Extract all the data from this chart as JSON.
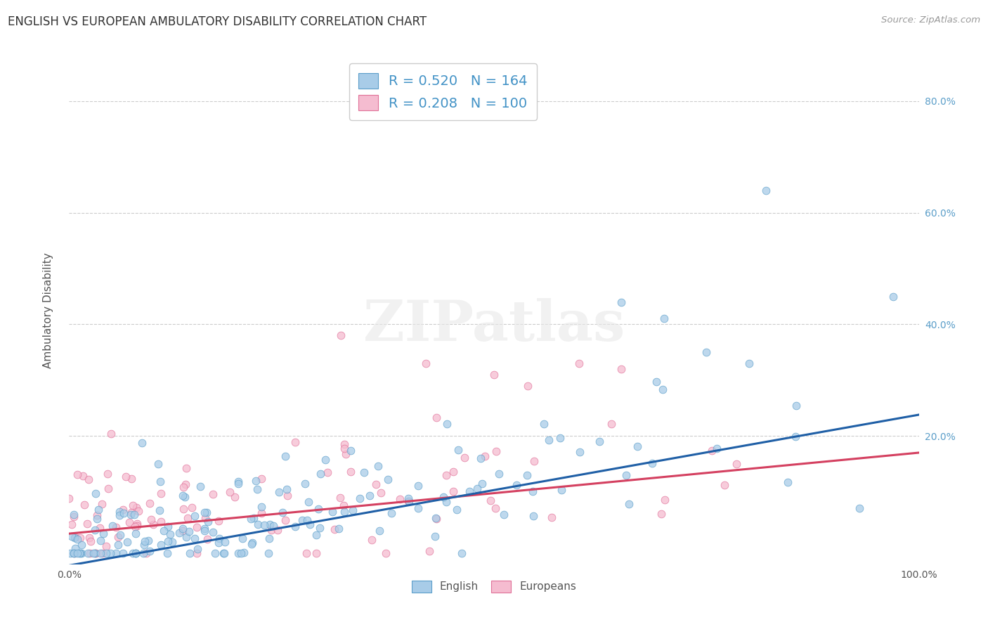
{
  "title": "ENGLISH VS EUROPEAN AMBULATORY DISABILITY CORRELATION CHART",
  "source": "Source: ZipAtlas.com",
  "ylabel": "Ambulatory Disability",
  "xlim": [
    0.0,
    1.0
  ],
  "ylim": [
    -0.03,
    0.88
  ],
  "xtick_labels": [
    "0.0%",
    "",
    "",
    "",
    "",
    "100.0%"
  ],
  "xtick_vals": [
    0.0,
    0.2,
    0.4,
    0.6,
    0.8,
    1.0
  ],
  "right_ytick_labels": [
    "20.0%",
    "40.0%",
    "60.0%",
    "80.0%"
  ],
  "right_ytick_vals": [
    0.2,
    0.4,
    0.6,
    0.8
  ],
  "english_color": "#a8cce8",
  "english_edge_color": "#5b9ec9",
  "european_color": "#f5bcd0",
  "european_edge_color": "#e07098",
  "english_R": 0.52,
  "english_N": 164,
  "european_R": 0.208,
  "european_N": 100,
  "legend_label_english": "English",
  "legend_label_european": "Europeans",
  "background_color": "#ffffff",
  "grid_color": "#cccccc",
  "title_fontsize": 12,
  "axis_label_fontsize": 11,
  "tick_fontsize": 10,
  "english_line_color": "#1f5fa6",
  "european_line_color": "#d44060",
  "english_line_intercept": -0.032,
  "english_line_slope": 0.27,
  "european_line_intercept": 0.025,
  "european_line_slope": 0.145,
  "legend_text_color": "#4292c6",
  "legend_N_color": "#e05080"
}
